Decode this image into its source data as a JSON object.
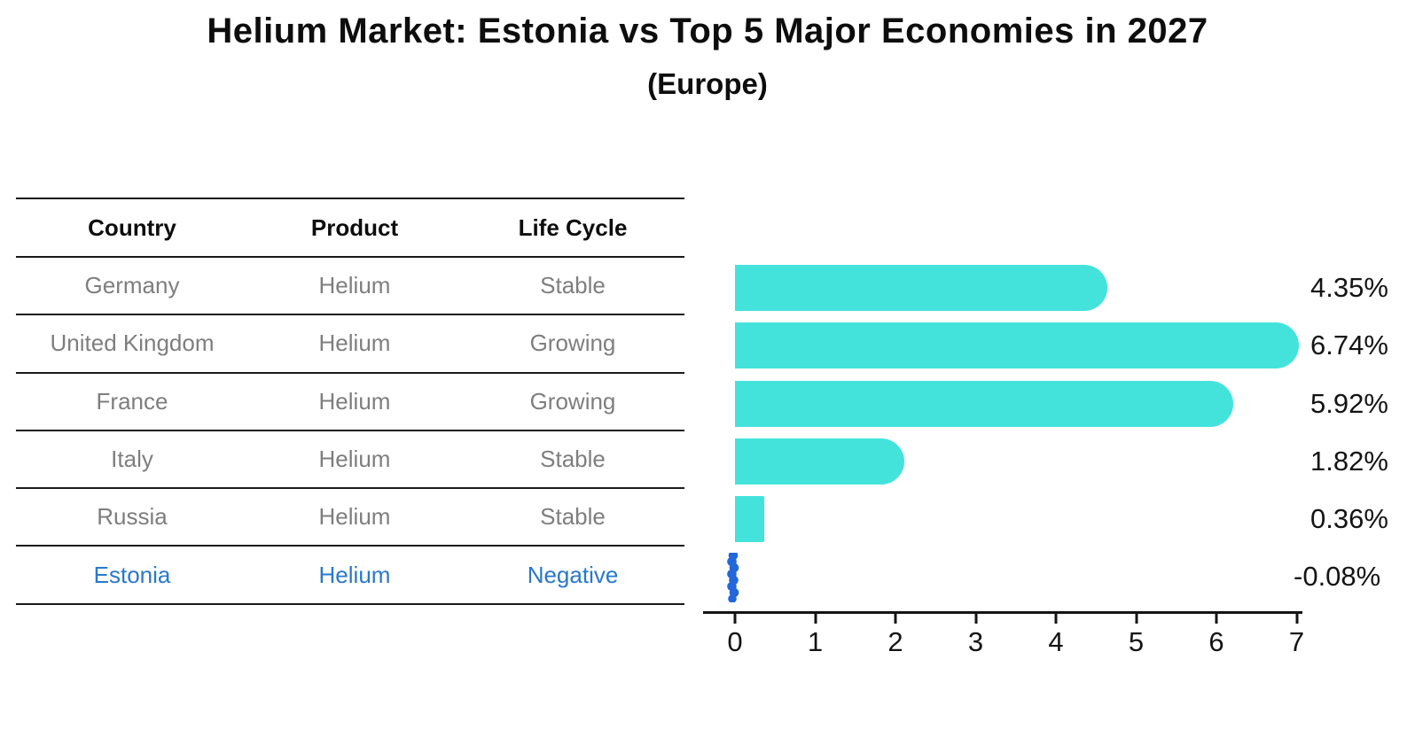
{
  "title": "Helium Market: Estonia vs Top 5 Major Economies in 2027",
  "subtitle": "(Europe)",
  "table": {
    "headers": [
      "Country",
      "Product",
      "Life Cycle"
    ],
    "rows": [
      {
        "country": "Germany",
        "product": "Helium",
        "life_cycle": "Stable",
        "highlight": false
      },
      {
        "country": "United Kingdom",
        "product": "Helium",
        "life_cycle": "Growing",
        "highlight": false
      },
      {
        "country": "France",
        "product": "Helium",
        "life_cycle": "Growing",
        "highlight": false
      },
      {
        "country": "Italy",
        "product": "Helium",
        "life_cycle": "Stable",
        "highlight": false
      },
      {
        "country": "Russia",
        "product": "Helium",
        "life_cycle": "Stable",
        "highlight": false
      },
      {
        "country": "Estonia",
        "product": "Helium",
        "life_cycle": "Negative",
        "highlight": true
      }
    ]
  },
  "chart_data": {
    "type": "bar",
    "orientation": "horizontal",
    "title": "Helium Market: Estonia vs Top 5 Major Economies in 2027",
    "subtitle": "(Europe)",
    "categories": [
      "Germany",
      "United Kingdom",
      "France",
      "Italy",
      "Russia",
      "Estonia"
    ],
    "values": [
      4.35,
      6.74,
      5.92,
      1.82,
      0.36,
      -0.08
    ],
    "value_labels": [
      "4.35%",
      "6.74%",
      "5.92%",
      "1.82%",
      "0.36%",
      "-0.08%"
    ],
    "tick_labels": [
      "0",
      "1",
      "2",
      "3",
      "4",
      "5",
      "6",
      "7"
    ],
    "xlim": [
      0,
      7
    ],
    "xlabel": "",
    "ylabel": "",
    "grid": false,
    "legend": false,
    "bar_color": "#43E3DC",
    "highlight_bar_color": "#2267DC",
    "highlight_text_color": "#2878CF"
  }
}
